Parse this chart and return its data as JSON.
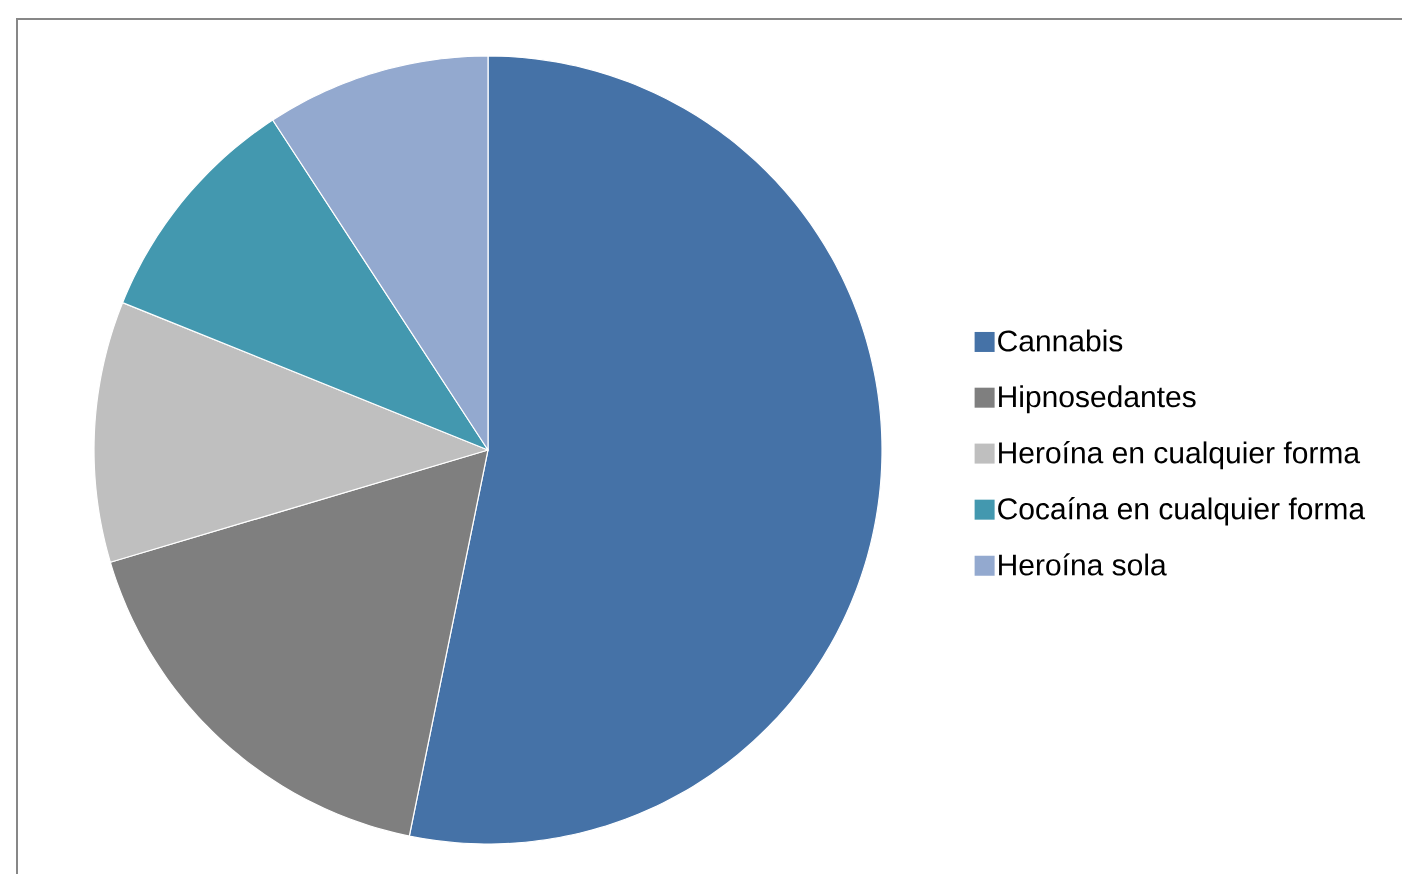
{
  "chart_data": {
    "type": "pie",
    "categories": [
      "Cannabis",
      "Hipnosedantes",
      "Heroína en cualquier forma",
      "Cocaína en cualquier forma",
      "Heroína sola"
    ],
    "values": [
      53.2,
      17.2,
      10.7,
      9.7,
      9.2
    ],
    "colors": [
      "#4572a7",
      "#7f7f7f",
      "#bfbfbf",
      "#4398af",
      "#93a9cf"
    ],
    "legend": "right"
  }
}
